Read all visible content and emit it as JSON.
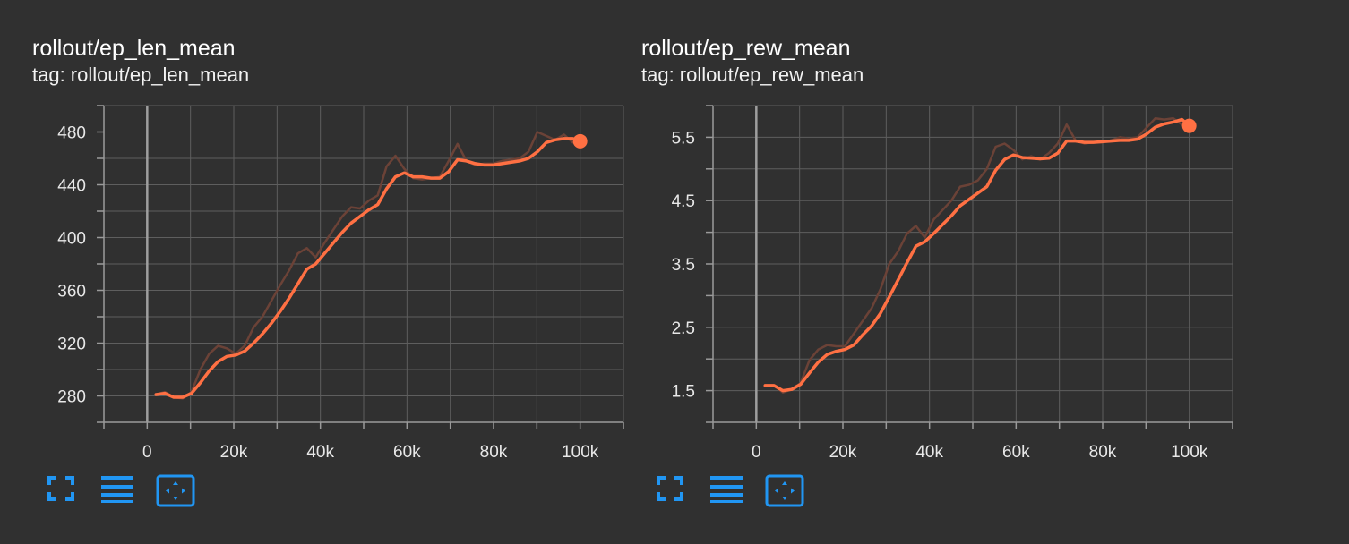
{
  "colors": {
    "background": "#303030",
    "grid": "#5e5e5e",
    "axis": "#9a9a9a",
    "zero_line": "#9e9e9e",
    "smoothed": "#ff7043",
    "raw": "#6b4237",
    "icon": "#2196f3"
  },
  "panels": [
    {
      "title": "rollout/ep_len_mean",
      "subtitle": "tag: rollout/ep_len_mean"
    },
    {
      "title": "rollout/ep_rew_mean",
      "subtitle": "tag: rollout/ep_rew_mean"
    }
  ],
  "toolbar_icons": [
    "fullscreen-icon",
    "legend-toggle-icon",
    "fit-domain-icon"
  ],
  "chart_data": [
    {
      "type": "line",
      "title": "rollout/ep_len_mean",
      "xlim": [
        -10000,
        110000
      ],
      "ylim": [
        260,
        500
      ],
      "x_ticks": [
        0,
        20000,
        40000,
        60000,
        80000,
        100000
      ],
      "x_tick_labels": [
        "0",
        "20k",
        "40k",
        "60k",
        "80k",
        "100k"
      ],
      "y_ticks": [
        280,
        320,
        360,
        400,
        440,
        480
      ],
      "y_tick_labels": [
        "280",
        "320",
        "360",
        "400",
        "440",
        "480"
      ],
      "grid": true,
      "series": [
        {
          "style": "raw",
          "x": [
            2048,
            4096,
            6144,
            8192,
            10240,
            12288,
            14336,
            16384,
            18432,
            20480,
            22528,
            24576,
            26624,
            28672,
            30720,
            32768,
            34816,
            36864,
            38912,
            40960,
            43008,
            45056,
            47104,
            49152,
            51200,
            53248,
            55296,
            57344,
            59392,
            61440,
            63488,
            65536,
            67584,
            69632,
            71680,
            73728,
            75776,
            77824,
            79872,
            81920,
            83968,
            86016,
            88064,
            90112,
            92160,
            94208,
            96256,
            98304,
            100000
          ],
          "y": [
            281,
            283,
            279,
            278,
            283,
            300,
            312,
            318,
            316,
            312,
            318,
            332,
            340,
            352,
            364,
            375,
            388,
            392,
            385,
            396,
            406,
            416,
            423,
            422,
            428,
            432,
            454,
            462,
            452,
            445,
            444,
            445,
            446,
            458,
            471,
            458,
            455,
            456,
            456,
            458,
            459,
            460,
            465,
            480,
            477,
            474,
            478,
            472,
            472
          ]
        },
        {
          "style": "smoothed",
          "x": [
            2048,
            4096,
            6144,
            8192,
            10240,
            12288,
            14336,
            16384,
            18432,
            20480,
            22528,
            24576,
            26624,
            28672,
            30720,
            32768,
            34816,
            36864,
            38912,
            40960,
            43008,
            45056,
            47104,
            49152,
            51200,
            53248,
            55296,
            57344,
            59392,
            61440,
            63488,
            65536,
            67584,
            69632,
            71680,
            73728,
            75776,
            77824,
            79872,
            81920,
            83968,
            86016,
            88064,
            90112,
            92160,
            94208,
            96256,
            98304,
            100000
          ],
          "y": [
            281,
            282,
            279,
            279,
            282,
            290,
            299,
            306,
            310,
            311,
            314,
            320,
            327,
            335,
            344,
            354,
            365,
            376,
            380,
            388,
            396,
            404,
            411,
            416,
            421,
            425,
            437,
            446,
            449,
            446,
            446,
            445,
            445,
            450,
            459,
            458,
            456,
            455,
            455,
            456,
            457,
            458,
            460,
            465,
            472,
            474,
            475,
            475,
            473
          ]
        }
      ]
    },
    {
      "type": "line",
      "title": "rollout/ep_rew_mean",
      "xlim": [
        -10000,
        110000
      ],
      "ylim": [
        1.0,
        6.0
      ],
      "x_ticks": [
        0,
        20000,
        40000,
        60000,
        80000,
        100000
      ],
      "x_tick_labels": [
        "0",
        "20k",
        "40k",
        "60k",
        "80k",
        "100k"
      ],
      "y_ticks": [
        1.5,
        2.5,
        3.5,
        4.5,
        5.5
      ],
      "y_tick_labels": [
        "1.5",
        "2.5",
        "3.5",
        "4.5",
        "5.5"
      ],
      "grid": true,
      "series": [
        {
          "style": "raw",
          "x": [
            2048,
            4096,
            6144,
            8192,
            10240,
            12288,
            14336,
            16384,
            18432,
            20480,
            22528,
            24576,
            26624,
            28672,
            30720,
            32768,
            34816,
            36864,
            38912,
            40960,
            43008,
            45056,
            47104,
            49152,
            51200,
            53248,
            55296,
            57344,
            59392,
            61440,
            63488,
            65536,
            67584,
            69632,
            71680,
            73728,
            75776,
            77824,
            79872,
            81920,
            83968,
            86016,
            88064,
            90112,
            92160,
            94208,
            96256,
            98304,
            100000
          ],
          "y": [
            1.58,
            1.58,
            1.47,
            1.52,
            1.62,
            1.98,
            2.15,
            2.22,
            2.2,
            2.2,
            2.4,
            2.6,
            2.8,
            3.1,
            3.5,
            3.7,
            3.98,
            4.1,
            3.92,
            4.2,
            4.35,
            4.5,
            4.72,
            4.75,
            4.82,
            5.0,
            5.35,
            5.4,
            5.3,
            5.15,
            5.2,
            5.15,
            5.25,
            5.4,
            5.7,
            5.45,
            5.4,
            5.42,
            5.42,
            5.45,
            5.5,
            5.48,
            5.5,
            5.65,
            5.8,
            5.78,
            5.8,
            5.7,
            5.65
          ]
        },
        {
          "style": "smoothed",
          "x": [
            2048,
            4096,
            6144,
            8192,
            10240,
            12288,
            14336,
            16384,
            18432,
            20480,
            22528,
            24576,
            26624,
            28672,
            30720,
            32768,
            34816,
            36864,
            38912,
            40960,
            43008,
            45056,
            47104,
            49152,
            51200,
            53248,
            55296,
            57344,
            59392,
            61440,
            63488,
            65536,
            67584,
            69632,
            71680,
            73728,
            75776,
            77824,
            79872,
            81920,
            83968,
            86016,
            88064,
            90112,
            92160,
            94208,
            96256,
            98304,
            100000
          ],
          "y": [
            1.58,
            1.58,
            1.5,
            1.52,
            1.6,
            1.78,
            1.95,
            2.07,
            2.12,
            2.15,
            2.22,
            2.38,
            2.52,
            2.72,
            2.98,
            3.25,
            3.52,
            3.78,
            3.85,
            3.98,
            4.12,
            4.26,
            4.42,
            4.52,
            4.62,
            4.72,
            4.98,
            5.15,
            5.22,
            5.18,
            5.17,
            5.16,
            5.17,
            5.25,
            5.44,
            5.44,
            5.42,
            5.42,
            5.43,
            5.44,
            5.45,
            5.45,
            5.47,
            5.55,
            5.66,
            5.71,
            5.74,
            5.78,
            5.68
          ]
        }
      ]
    }
  ]
}
